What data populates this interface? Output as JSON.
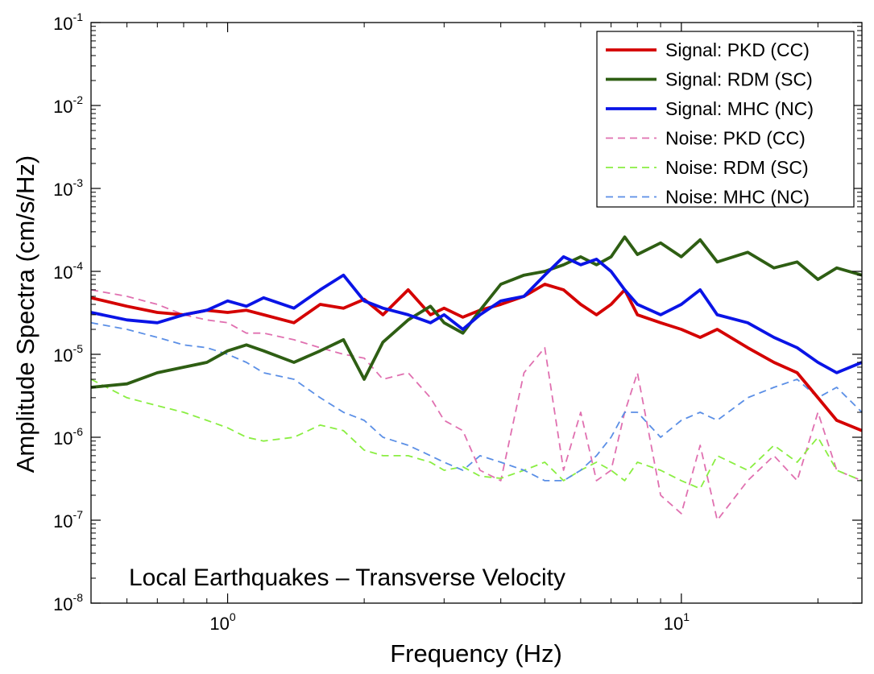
{
  "chart_data": {
    "type": "line",
    "title": "",
    "annotation": "Local Earthquakes – Transverse Velocity",
    "xlabel": "Frequency (Hz)",
    "ylabel": "Amplitude Spectra (cm/s/Hz)",
    "xscale": "log",
    "yscale": "log",
    "xlim": [
      0.5,
      25
    ],
    "ylim": [
      1e-08,
      0.1
    ],
    "x_ticks": [
      {
        "value": 1,
        "base": "10",
        "exp": "0"
      },
      {
        "value": 10,
        "base": "10",
        "exp": "1"
      }
    ],
    "y_ticks": [
      {
        "value": 1e-08,
        "base": "10",
        "exp": "-8"
      },
      {
        "value": 1e-07,
        "base": "10",
        "exp": "-7"
      },
      {
        "value": 1e-06,
        "base": "10",
        "exp": "-6"
      },
      {
        "value": 1e-05,
        "base": "10",
        "exp": "-5"
      },
      {
        "value": 0.0001,
        "base": "10",
        "exp": "-4"
      },
      {
        "value": 0.001,
        "base": "10",
        "exp": "-3"
      },
      {
        "value": 0.01,
        "base": "10",
        "exp": "-2"
      },
      {
        "value": 0.1,
        "base": "10",
        "exp": "-1"
      }
    ],
    "grid": false,
    "legend_position": "top-right",
    "series": [
      {
        "name": "Signal: PKD (CC)",
        "color": "#d40000",
        "dashed": false,
        "x": [
          0.5,
          0.6,
          0.7,
          0.8,
          0.9,
          1.0,
          1.1,
          1.2,
          1.4,
          1.6,
          1.8,
          2.0,
          2.2,
          2.5,
          2.8,
          3.0,
          3.3,
          3.6,
          4.0,
          4.5,
          5.0,
          5.5,
          6.0,
          6.5,
          7.0,
          7.5,
          8.0,
          9.0,
          10,
          11,
          12,
          14,
          16,
          18,
          20,
          22,
          25
        ],
        "y": [
          4.8e-05,
          3.8e-05,
          3.2e-05,
          3e-05,
          3.4e-05,
          3.2e-05,
          3.4e-05,
          3e-05,
          2.4e-05,
          4e-05,
          3.6e-05,
          4.6e-05,
          3e-05,
          6e-05,
          3e-05,
          3.6e-05,
          2.8e-05,
          3.4e-05,
          4e-05,
          5e-05,
          7e-05,
          6e-05,
          4e-05,
          3e-05,
          4e-05,
          6e-05,
          3e-05,
          2.4e-05,
          2e-05,
          1.6e-05,
          2e-05,
          1.2e-05,
          8e-06,
          6e-06,
          3e-06,
          1.6e-06,
          1.2e-06
        ]
      },
      {
        "name": "Signal: RDM (SC)",
        "color": "#2e5e13",
        "dashed": false,
        "x": [
          0.5,
          0.6,
          0.7,
          0.8,
          0.9,
          1.0,
          1.1,
          1.2,
          1.4,
          1.6,
          1.8,
          2.0,
          2.2,
          2.5,
          2.8,
          3.0,
          3.3,
          3.6,
          4.0,
          4.5,
          5.0,
          5.5,
          6.0,
          6.5,
          7.0,
          7.5,
          8.0,
          9.0,
          10,
          11,
          12,
          14,
          16,
          18,
          20,
          22,
          25
        ],
        "y": [
          4e-06,
          4.4e-06,
          6e-06,
          7e-06,
          8e-06,
          1.1e-05,
          1.3e-05,
          1.1e-05,
          8e-06,
          1.1e-05,
          1.5e-05,
          5e-06,
          1.4e-05,
          2.6e-05,
          3.8e-05,
          2.4e-05,
          1.8e-05,
          3.4e-05,
          7e-05,
          9e-05,
          0.0001,
          0.00012,
          0.00015,
          0.00012,
          0.00015,
          0.00026,
          0.00016,
          0.00022,
          0.00015,
          0.00024,
          0.00013,
          0.00017,
          0.00011,
          0.00013,
          8e-05,
          0.00011,
          9e-05
        ]
      },
      {
        "name": "Signal: MHC (NC)",
        "color": "#0a14e6",
        "dashed": false,
        "x": [
          0.5,
          0.6,
          0.7,
          0.8,
          0.9,
          1.0,
          1.1,
          1.2,
          1.4,
          1.6,
          1.8,
          2.0,
          2.2,
          2.5,
          2.8,
          3.0,
          3.3,
          3.6,
          4.0,
          4.5,
          5.0,
          5.5,
          6.0,
          6.5,
          7.0,
          7.5,
          8.0,
          9.0,
          10,
          11,
          12,
          14,
          16,
          18,
          20,
          22,
          25
        ],
        "y": [
          3.2e-05,
          2.6e-05,
          2.4e-05,
          3e-05,
          3.4e-05,
          4.4e-05,
          3.8e-05,
          4.8e-05,
          3.6e-05,
          6e-05,
          9e-05,
          4.4e-05,
          3.6e-05,
          3e-05,
          2.4e-05,
          3e-05,
          2e-05,
          3e-05,
          4.4e-05,
          5e-05,
          9e-05,
          0.00015,
          0.00012,
          0.00014,
          0.0001,
          6e-05,
          4e-05,
          3e-05,
          4e-05,
          6e-05,
          3e-05,
          2.4e-05,
          1.6e-05,
          1.2e-05,
          8e-06,
          6e-06,
          8e-06
        ]
      },
      {
        "name": "Noise: PKD (CC)",
        "color": "#e070b0",
        "dashed": true,
        "x": [
          0.5,
          0.6,
          0.7,
          0.8,
          0.9,
          1.0,
          1.1,
          1.2,
          1.4,
          1.6,
          1.8,
          2.0,
          2.2,
          2.5,
          2.8,
          3.0,
          3.3,
          3.6,
          4.0,
          4.5,
          5.0,
          5.5,
          6.0,
          6.5,
          7.0,
          7.5,
          8.0,
          9.0,
          10,
          11,
          12,
          14,
          16,
          18,
          20,
          22,
          25
        ],
        "y": [
          6e-05,
          5e-05,
          4e-05,
          3e-05,
          2.6e-05,
          2.4e-05,
          1.8e-05,
          1.8e-05,
          1.5e-05,
          1.2e-05,
          1e-05,
          9e-06,
          5e-06,
          6e-06,
          3e-06,
          1.6e-06,
          1.2e-06,
          4e-07,
          3e-07,
          6e-06,
          1.2e-05,
          4e-07,
          2e-06,
          3e-07,
          4e-07,
          2e-06,
          6e-06,
          2e-07,
          1.2e-07,
          8e-07,
          1e-07,
          3e-07,
          6e-07,
          3e-07,
          2e-06,
          4e-07,
          3e-07
        ]
      },
      {
        "name": "Noise: RDM (SC)",
        "color": "#8aee42",
        "dashed": true,
        "x": [
          0.5,
          0.6,
          0.7,
          0.8,
          0.9,
          1.0,
          1.1,
          1.2,
          1.4,
          1.6,
          1.8,
          2.0,
          2.2,
          2.5,
          2.8,
          3.0,
          3.3,
          3.6,
          4.0,
          4.5,
          5.0,
          5.5,
          6.0,
          6.5,
          7.0,
          7.5,
          8.0,
          9.0,
          10,
          11,
          12,
          14,
          16,
          18,
          20,
          22,
          25
        ],
        "y": [
          5e-06,
          3e-06,
          2.4e-06,
          2e-06,
          1.6e-06,
          1.3e-06,
          1e-06,
          9e-07,
          1e-06,
          1.4e-06,
          1.2e-06,
          7e-07,
          6e-07,
          6e-07,
          5e-07,
          4e-07,
          4.4e-07,
          3.4e-07,
          3.2e-07,
          4e-07,
          5e-07,
          3e-07,
          4e-07,
          5e-07,
          4e-07,
          3e-07,
          5e-07,
          4e-07,
          3e-07,
          2.4e-07,
          6e-07,
          4e-07,
          8e-07,
          5e-07,
          1e-06,
          4e-07,
          3e-07
        ]
      },
      {
        "name": "Noise: MHC (NC)",
        "color": "#5b8fe6",
        "dashed": true,
        "x": [
          0.5,
          0.6,
          0.7,
          0.8,
          0.9,
          1.0,
          1.1,
          1.2,
          1.4,
          1.6,
          1.8,
          2.0,
          2.2,
          2.5,
          2.8,
          3.0,
          3.3,
          3.6,
          4.0,
          4.5,
          5.0,
          5.5,
          6.0,
          6.5,
          7.0,
          7.5,
          8.0,
          9.0,
          10,
          11,
          12,
          14,
          16,
          18,
          20,
          22,
          25
        ],
        "y": [
          2.4e-05,
          2e-05,
          1.6e-05,
          1.3e-05,
          1.2e-05,
          1e-05,
          8e-06,
          6e-06,
          5e-06,
          3e-06,
          2e-06,
          1.6e-06,
          1e-06,
          8e-07,
          6e-07,
          5e-07,
          4e-07,
          6e-07,
          5e-07,
          4e-07,
          3e-07,
          3e-07,
          4e-07,
          6e-07,
          1e-06,
          2e-06,
          2e-06,
          1e-06,
          1.6e-06,
          2e-06,
          1.6e-06,
          3e-06,
          4e-06,
          5e-06,
          3e-06,
          4e-06,
          2e-06
        ]
      }
    ]
  }
}
